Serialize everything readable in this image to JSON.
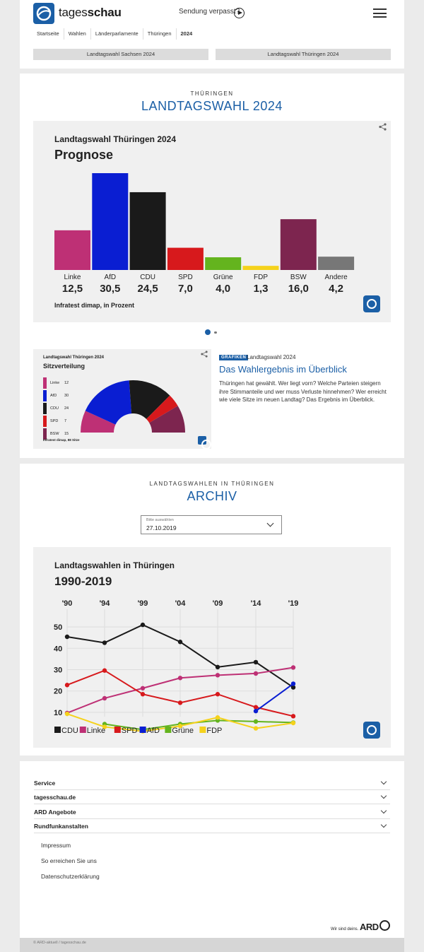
{
  "header": {
    "logo_bold": "schau",
    "logo_light": "tages",
    "sendung_label": "Sendung verpasst?",
    "breadcrumbs": [
      "Startseite",
      "Wahlen",
      "Länderparlamente",
      "Thüringen",
      "2024"
    ],
    "pills": [
      "Landtagswahl Sachsen 2024",
      "Landtagswahl Thüringen 2024"
    ]
  },
  "section_main": {
    "kicker": "THÜRINGEN",
    "title": "LANDTAGSWAHL 2024"
  },
  "prognose_card": {
    "title_small": "Landtagswahl Thüringen 2024",
    "title_big": "Prognose",
    "source": "Infratest dimap, in Prozent"
  },
  "teaser": {
    "badge": "GRAFIKEN",
    "topline": "Landtagswahl 2024",
    "title": "Das Wahlergebnis im Überblick",
    "text": "Thüringen hat gewählt. Wer liegt vorn? Welche Parteien steigern ihre Stimmanteile und wer muss Verluste hinnehmen? Wer erreicht wie viele Sitze im neuen Landtag? Das Ergebnis im Überblick."
  },
  "seats_card": {
    "title_small": "Landtagswahl Thüringen 2024",
    "title_big": "Sitzverteilung",
    "source": "Infratest dimap, 88 Sitze"
  },
  "section_archive": {
    "kicker": "LANDTAGSWAHLEN IN THÜRINGEN",
    "title": "ARCHIV",
    "select_label": "Bitte auswählen",
    "select_value": "27.10.2019"
  },
  "archive_card": {
    "title_small": "Landtagswahlen in Thüringen",
    "title_big": "1990-2019"
  },
  "chart_data": [
    {
      "type": "bar",
      "title": "Prognose",
      "categories": [
        "Linke",
        "AfD",
        "CDU",
        "SPD",
        "Grüne",
        "FDP",
        "BSW",
        "Andere"
      ],
      "value_labels": [
        "12,5",
        "30,5",
        "24,5",
        "7,0",
        "4,0",
        "1,3",
        "16,0",
        "4,2"
      ],
      "values": [
        12.5,
        30.5,
        24.5,
        7.0,
        4.0,
        1.3,
        16.0,
        4.2
      ],
      "colors": [
        "#be3075",
        "#0a1ed2",
        "#1a1a1a",
        "#d7191c",
        "#64b41e",
        "#f5d21c",
        "#7d254f",
        "#777777"
      ],
      "ylim": [
        0,
        30.5
      ]
    },
    {
      "type": "pie",
      "title": "Sitzverteilung",
      "categories": [
        "Linke",
        "AfD",
        "CDU",
        "SPD",
        "BSW"
      ],
      "values": [
        12,
        30,
        24,
        7,
        15
      ],
      "colors": [
        "#be3075",
        "#0a1ed2",
        "#1a1a1a",
        "#d7191c",
        "#7d254f"
      ]
    },
    {
      "type": "line",
      "title": "1990-2019",
      "x": [
        "'90",
        "'94",
        "'99",
        "'04",
        "'09",
        "'14",
        "'19"
      ],
      "y_ticks": [
        10,
        20,
        30,
        40,
        50
      ],
      "ylim": [
        5,
        55
      ],
      "series": [
        {
          "name": "CDU",
          "color": "#1a1a1a",
          "values": [
            45.4,
            42.6,
            51.0,
            43.0,
            31.2,
            33.5,
            21.7
          ]
        },
        {
          "name": "Linke",
          "color": "#be3075",
          "values": [
            9.7,
            16.6,
            21.3,
            26.1,
            27.4,
            28.2,
            31.0
          ]
        },
        {
          "name": "SPD",
          "color": "#d7191c",
          "values": [
            22.8,
            29.6,
            18.5,
            14.5,
            18.5,
            12.4,
            8.2
          ]
        },
        {
          "name": "AfD",
          "color": "#0a1ed2",
          "values": [
            null,
            null,
            null,
            null,
            null,
            10.6,
            23.4
          ]
        },
        {
          "name": "Grüne",
          "color": "#64b41e",
          "values": [
            null,
            4.5,
            1.9,
            4.5,
            6.2,
            5.7,
            5.2
          ]
        },
        {
          "name": "FDP",
          "color": "#f5d21c",
          "values": [
            9.3,
            3.2,
            1.1,
            3.6,
            7.6,
            2.5,
            5.0
          ]
        }
      ]
    }
  ],
  "footer": {
    "accordions": [
      "Service",
      "tagesschau.de",
      "ARD Angebote",
      "Rundfunkanstalten"
    ],
    "links": [
      "Impressum",
      "So erreichen Sie uns",
      "Datenschutzerklärung"
    ],
    "ard_claim": "Wir sind deins.",
    "ard_word": "ARD",
    "copyright": "© ARD-aktuell / tagesschau.de"
  }
}
